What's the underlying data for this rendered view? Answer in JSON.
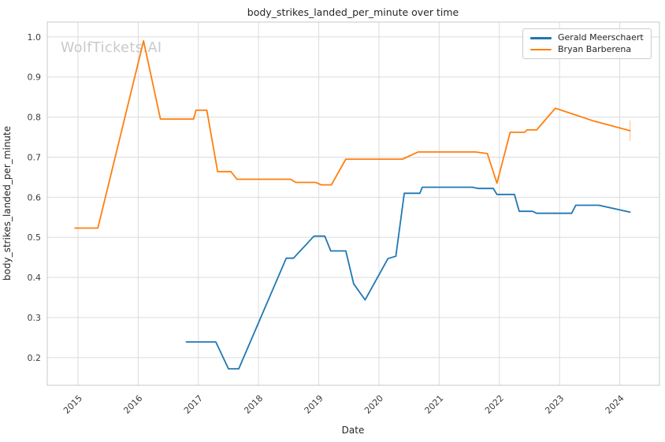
{
  "watermark": {
    "text": "WolfTickets.AI",
    "color": "#c9c9c9"
  },
  "legend": {
    "items": [
      {
        "label": "Gerald Meerschaert",
        "color": "#1f77b4"
      },
      {
        "label": "Bryan Barberena",
        "color": "#ff7f0e"
      }
    ]
  },
  "chart_data": {
    "type": "line",
    "title": "body_strikes_landed_per_minute over time",
    "xlabel": "Date",
    "ylabel": "body_strikes_landed_per_minute",
    "grid": true,
    "legend_position": "upper right",
    "xlim": [
      2014.49,
      2024.66
    ],
    "ylim": [
      0.131,
      1.037
    ],
    "x_ticks": [
      2015,
      2016,
      2017,
      2018,
      2019,
      2020,
      2021,
      2022,
      2023,
      2024
    ],
    "y_ticks": [
      0.2,
      0.3,
      0.4,
      0.5,
      0.6,
      0.7,
      0.8,
      0.9,
      1.0
    ],
    "styles": {
      "grid_color": "#dcdcdc",
      "spine_color": "#c8c8c8",
      "text_color": "#262626",
      "tick_text_color": "#3b3b3b",
      "line_width": 1.8
    },
    "series": [
      {
        "name": "Gerald Meerschaert",
        "color": "#1f77b4",
        "end_tick": false,
        "points": [
          [
            2016.8,
            0.239
          ],
          [
            2017.29,
            0.239
          ],
          [
            2017.5,
            0.172
          ],
          [
            2017.67,
            0.172
          ],
          [
            2018.46,
            0.448
          ],
          [
            2018.58,
            0.448
          ],
          [
            2018.92,
            0.503
          ],
          [
            2019.1,
            0.503
          ],
          [
            2019.2,
            0.466
          ],
          [
            2019.45,
            0.466
          ],
          [
            2019.58,
            0.384
          ],
          [
            2019.77,
            0.344
          ],
          [
            2020.15,
            0.447
          ],
          [
            2020.28,
            0.453
          ],
          [
            2020.42,
            0.61
          ],
          [
            2020.68,
            0.61
          ],
          [
            2020.72,
            0.625
          ],
          [
            2021.55,
            0.625
          ],
          [
            2021.65,
            0.622
          ],
          [
            2021.9,
            0.622
          ],
          [
            2021.96,
            0.607
          ],
          [
            2022.25,
            0.607
          ],
          [
            2022.33,
            0.565
          ],
          [
            2022.55,
            0.565
          ],
          [
            2022.62,
            0.56
          ],
          [
            2023.2,
            0.56
          ],
          [
            2023.27,
            0.58
          ],
          [
            2023.65,
            0.58
          ],
          [
            2024.17,
            0.563
          ]
        ]
      },
      {
        "name": "Bryan Barberena",
        "color": "#ff7f0e",
        "end_tick": true,
        "points": [
          [
            2014.95,
            0.523
          ],
          [
            2015.33,
            0.523
          ],
          [
            2016.09,
            0.99
          ],
          [
            2016.37,
            0.795
          ],
          [
            2016.92,
            0.795
          ],
          [
            2016.96,
            0.817
          ],
          [
            2017.14,
            0.817
          ],
          [
            2017.32,
            0.664
          ],
          [
            2017.54,
            0.664
          ],
          [
            2017.64,
            0.645
          ],
          [
            2018.53,
            0.645
          ],
          [
            2018.62,
            0.637
          ],
          [
            2018.95,
            0.637
          ],
          [
            2019.04,
            0.631
          ],
          [
            2019.21,
            0.631
          ],
          [
            2019.45,
            0.695
          ],
          [
            2020.39,
            0.695
          ],
          [
            2020.65,
            0.713
          ],
          [
            2021.6,
            0.713
          ],
          [
            2021.8,
            0.709
          ],
          [
            2021.96,
            0.635
          ],
          [
            2022.18,
            0.762
          ],
          [
            2022.42,
            0.762
          ],
          [
            2022.46,
            0.768
          ],
          [
            2022.62,
            0.768
          ],
          [
            2022.93,
            0.822
          ],
          [
            2023.25,
            0.806
          ],
          [
            2023.55,
            0.791
          ],
          [
            2024.17,
            0.766
          ]
        ]
      }
    ]
  }
}
